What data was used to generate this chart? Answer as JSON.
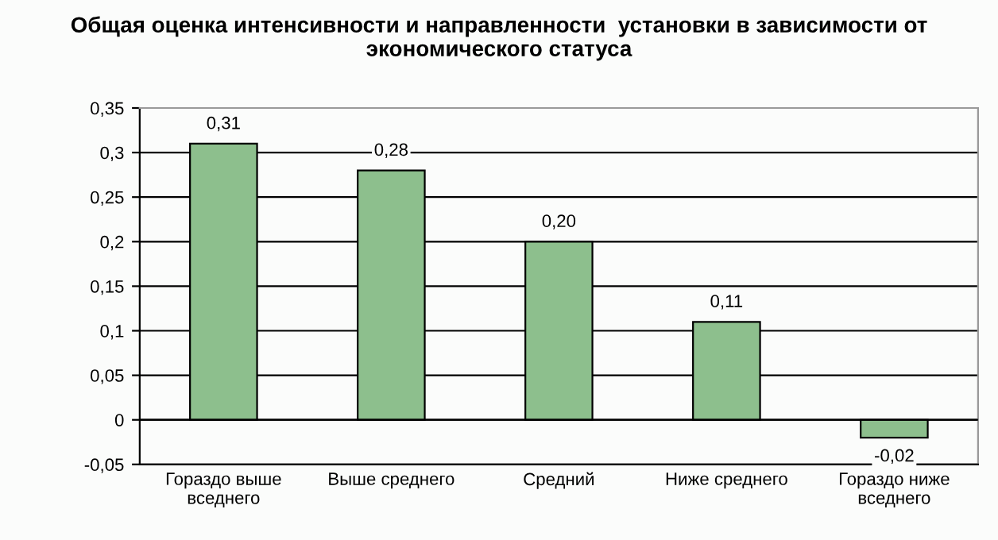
{
  "chart_data": {
    "type": "bar",
    "title": "Общая оценка интенсивности и направленности  установки в зависимости от экономического статуса",
    "categories": [
      "Гораздо выше вседнего",
      "Выше среднего",
      "Средний",
      "Ниже среднего",
      "Гораздо ниже вседнего"
    ],
    "values": [
      0.31,
      0.28,
      0.2,
      0.11,
      -0.02
    ],
    "value_labels": [
      "0,31",
      "0,28",
      "0,20",
      "0,11",
      "-0,02"
    ],
    "color": "#8dbf8d",
    "ylim": [
      -0.05,
      0.35
    ],
    "yticks": [
      {
        "value": -0.05,
        "label": "-0,05"
      },
      0,
      {
        "value": 0.05,
        "label": "0,05"
      },
      {
        "value": 0.1,
        "label": "0,1"
      },
      {
        "value": 0.15,
        "label": "0,15"
      },
      {
        "value": 0.2,
        "label": "0,2"
      },
      {
        "value": 0.25,
        "label": "0,25"
      },
      {
        "value": 0.3,
        "label": "0,3"
      },
      {
        "value": 0.35,
        "label": "0,35"
      }
    ],
    "grid": "y",
    "legend": false
  }
}
